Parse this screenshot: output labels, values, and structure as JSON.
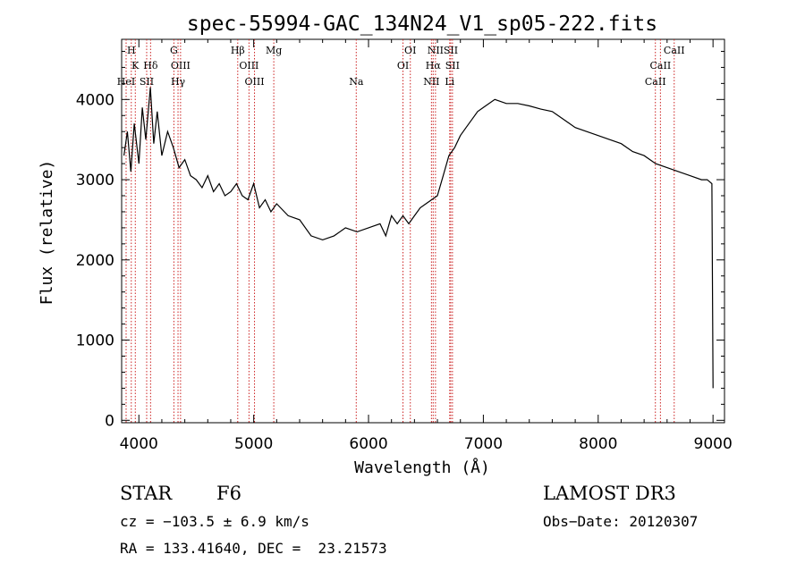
{
  "chart_data": {
    "type": "line",
    "title": "spec-55994-GAC_134N24_V1_sp05-222.fits",
    "xlabel": "Wavelength (Å)",
    "ylabel": "Flux (relative)",
    "xlim": [
      3850,
      9100
    ],
    "ylim": [
      -30,
      4750
    ],
    "x_ticks": [
      4000,
      5000,
      6000,
      7000,
      8000,
      9000
    ],
    "y_ticks": [
      0,
      1000,
      2000,
      3000,
      4000
    ],
    "x_tick_labels": [
      "4000",
      "5000",
      "6000",
      "7000",
      "8000",
      "9000"
    ],
    "y_tick_labels": [
      "0",
      "1000",
      "2000",
      "3000",
      "4000"
    ],
    "grid": false,
    "series": [
      {
        "name": "spectrum",
        "x": [
          3870,
          3900,
          3930,
          3960,
          4000,
          4030,
          4060,
          4100,
          4130,
          4160,
          4200,
          4250,
          4300,
          4350,
          4400,
          4450,
          4500,
          4550,
          4600,
          4650,
          4700,
          4750,
          4800,
          4850,
          4900,
          4950,
          5000,
          5050,
          5100,
          5150,
          5200,
          5300,
          5400,
          5500,
          5600,
          5700,
          5800,
          5900,
          6000,
          6100,
          6150,
          6200,
          6250,
          6300,
          6350,
          6400,
          6450,
          6500,
          6550,
          6600,
          6650,
          6700,
          6750,
          6800,
          6850,
          6900,
          6950,
          7000,
          7100,
          7200,
          7300,
          7400,
          7500,
          7600,
          7700,
          7800,
          7900,
          8000,
          8100,
          8200,
          8300,
          8400,
          8500,
          8600,
          8700,
          8800,
          8900,
          8950,
          8990,
          9000
        ],
        "y": [
          3300,
          3600,
          3100,
          3700,
          3200,
          3900,
          3500,
          4150,
          3450,
          3850,
          3300,
          3600,
          3400,
          3150,
          3250,
          3050,
          3000,
          2900,
          3050,
          2850,
          2950,
          2800,
          2850,
          2950,
          2800,
          2750,
          2950,
          2650,
          2750,
          2600,
          2700,
          2550,
          2500,
          2300,
          2250,
          2300,
          2400,
          2350,
          2400,
          2450,
          2300,
          2550,
          2450,
          2550,
          2450,
          2550,
          2650,
          2700,
          2750,
          2800,
          3050,
          3300,
          3400,
          3550,
          3650,
          3750,
          3850,
          3900,
          4000,
          3950,
          3950,
          3920,
          3880,
          3850,
          3750,
          3650,
          3600,
          3550,
          3500,
          3450,
          3350,
          3300,
          3200,
          3150,
          3100,
          3050,
          3000,
          3000,
          2950,
          400
        ],
        "color": "#000000"
      }
    ],
    "spectral_lines": [
      {
        "label": "H",
        "x": 3934,
        "row": 0
      },
      {
        "label": "K",
        "x": 3969,
        "row": 1
      },
      {
        "label": "HeI",
        "x": 3889,
        "row": 2
      },
      {
        "label": "SII",
        "x": 4068,
        "row": 2
      },
      {
        "label": "Hδ",
        "x": 4102,
        "row": 1
      },
      {
        "label": "G",
        "x": 4305,
        "row": 0
      },
      {
        "label": "OIII",
        "x": 4363,
        "row": 1
      },
      {
        "label": "Hγ",
        "x": 4341,
        "row": 2
      },
      {
        "label": "Hβ",
        "x": 4861,
        "row": 0
      },
      {
        "label": "OIII",
        "x": 4959,
        "row": 1
      },
      {
        "label": "OIII",
        "x": 5007,
        "row": 2
      },
      {
        "label": "Mg",
        "x": 5175,
        "row": 0
      },
      {
        "label": "Na",
        "x": 5893,
        "row": 2
      },
      {
        "label": "OI",
        "x": 6364,
        "row": 0
      },
      {
        "label": "OI",
        "x": 6300,
        "row": 1
      },
      {
        "label": "NII",
        "x": 6583,
        "row": 0
      },
      {
        "label": "Hα",
        "x": 6563,
        "row": 1
      },
      {
        "label": "NII",
        "x": 6548,
        "row": 2
      },
      {
        "label": "SII",
        "x": 6716,
        "row": 0
      },
      {
        "label": "SII",
        "x": 6731,
        "row": 1
      },
      {
        "label": "Li",
        "x": 6707,
        "row": 2
      },
      {
        "label": "CaII",
        "x": 8662,
        "row": 0
      },
      {
        "label": "CaII",
        "x": 8542,
        "row": 1
      },
      {
        "label": "CaII",
        "x": 8498,
        "row": 2
      }
    ]
  },
  "info": {
    "object_type": "STAR",
    "subclass": "F6",
    "survey": "LAMOST DR3",
    "cz": "cz = −103.5 ± 6.9 km/s",
    "obs_date": "Obs−Date: 20120307",
    "coords": "RA = 133.41640, DEC =  23.21573"
  },
  "colors": {
    "axis": "#000000",
    "spectrum": "#000000",
    "line_marker": "#cc2222"
  }
}
